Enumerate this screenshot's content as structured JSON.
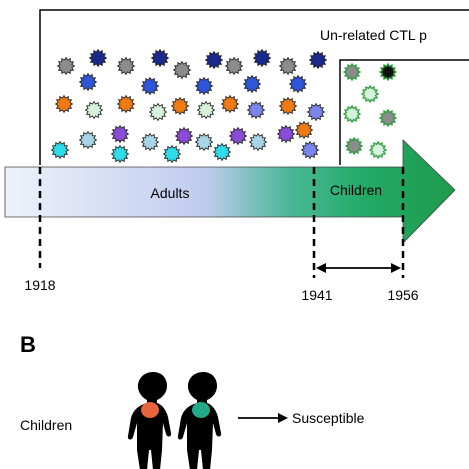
{
  "panel_a": {
    "box_label": "Un-related CTL p",
    "arrow_labels": {
      "adults": "Adults",
      "children": "Children"
    },
    "year_labels": [
      "1918",
      "1941",
      "1956"
    ]
  },
  "panel_b": {
    "letter": "B",
    "row_label": "Children",
    "outcome": "Susceptible"
  },
  "colors": {
    "navy": "#1a2a8c",
    "blue": "#2f56d8",
    "gray": "#8c8c8c",
    "orange": "#f07a14",
    "mint": "#d6f2da",
    "sky": "#a8d6e8",
    "purple": "#8a4bd8",
    "cyan": "#2fdcea",
    "periwinkle": "#7a86ea",
    "black": "#111111",
    "green_cell": "#2a9a3a",
    "silhouette_fill": "#000000",
    "torso_red": "#e8643c",
    "torso_green": "#22aa88"
  }
}
